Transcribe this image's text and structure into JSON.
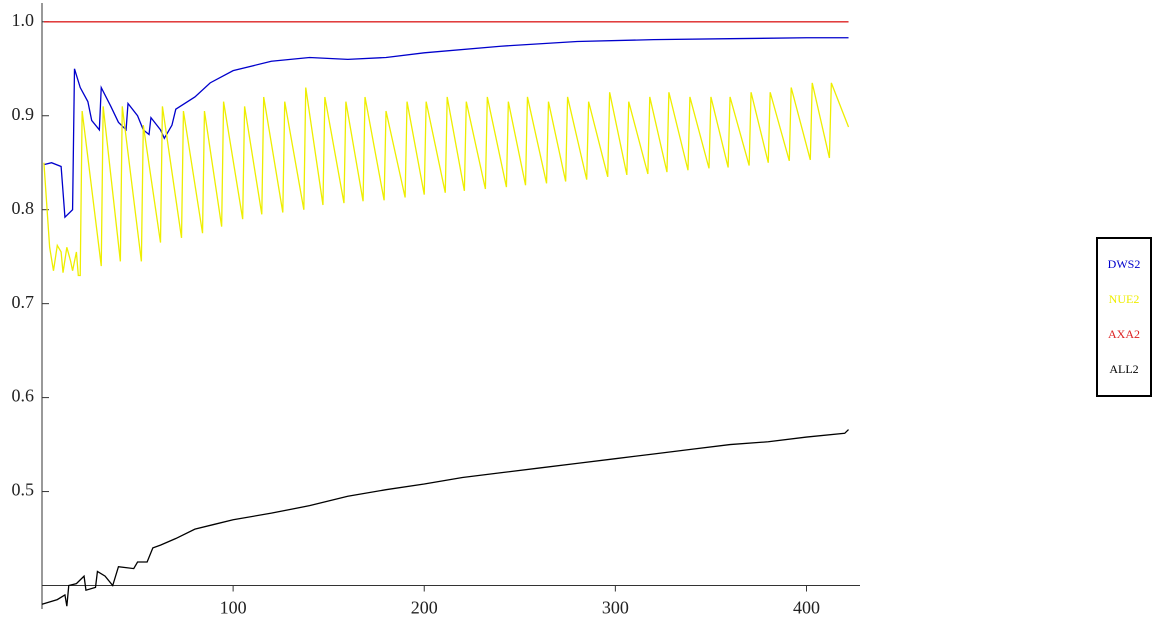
{
  "chart_data": {
    "type": "line",
    "xlim": [
      0,
      428
    ],
    "ylim": [
      0.375,
      1.02
    ],
    "axes_origin": [
      0,
      0.4
    ],
    "xticks": [
      100,
      200,
      300,
      400
    ],
    "yticks": [
      0.5,
      0.6,
      0.7,
      0.8,
      0.9,
      {
        "value": 1,
        "label": "1.0"
      }
    ],
    "legend": "right",
    "series": [
      {
        "name": "DWS2",
        "color": "#0000cc",
        "x": [
          1,
          5,
          10,
          12,
          16,
          17,
          20,
          24,
          26,
          30,
          31,
          36,
          40,
          44,
          45,
          50,
          53,
          56,
          57,
          62,
          64,
          68,
          70,
          80,
          88,
          100,
          120,
          140,
          160,
          180,
          200,
          240,
          280,
          320,
          360,
          400,
          422
        ],
        "values": [
          0.848,
          0.85,
          0.846,
          0.792,
          0.8,
          0.95,
          0.93,
          0.915,
          0.895,
          0.885,
          0.93,
          0.91,
          0.893,
          0.885,
          0.913,
          0.9,
          0.885,
          0.88,
          0.898,
          0.885,
          0.876,
          0.89,
          0.907,
          0.92,
          0.935,
          0.948,
          0.958,
          0.962,
          0.96,
          0.962,
          0.967,
          0.974,
          0.979,
          0.981,
          0.982,
          0.983,
          0.983
        ]
      },
      {
        "name": "NUE2",
        "color": "#eeee00",
        "x": [
          1,
          4,
          6,
          8,
          10,
          11,
          13,
          15,
          16,
          18,
          19,
          20,
          21,
          31,
          32,
          41,
          42,
          52,
          53,
          62,
          63,
          73,
          74,
          84,
          85,
          94,
          95,
          105,
          106,
          115,
          116,
          126,
          127,
          137,
          138,
          147,
          148,
          158,
          159,
          168,
          169,
          179,
          180,
          190,
          191,
          200,
          201,
          211,
          212,
          221,
          222,
          232,
          233,
          243,
          244,
          253,
          254,
          264,
          265,
          274,
          275,
          285,
          286,
          296,
          297,
          306,
          307,
          317,
          318,
          327,
          328,
          338,
          339,
          349,
          350,
          359,
          360,
          370,
          371,
          380,
          381,
          391,
          392,
          402,
          403,
          412,
          413,
          422
        ],
        "values": [
          0.85,
          0.76,
          0.735,
          0.762,
          0.755,
          0.733,
          0.76,
          0.745,
          0.735,
          0.755,
          0.73,
          0.73,
          0.905,
          0.74,
          0.91,
          0.745,
          0.91,
          0.745,
          0.89,
          0.765,
          0.91,
          0.77,
          0.905,
          0.775,
          0.905,
          0.782,
          0.915,
          0.79,
          0.91,
          0.795,
          0.92,
          0.797,
          0.915,
          0.8,
          0.93,
          0.805,
          0.92,
          0.807,
          0.915,
          0.809,
          0.92,
          0.81,
          0.905,
          0.813,
          0.915,
          0.816,
          0.915,
          0.818,
          0.92,
          0.82,
          0.915,
          0.822,
          0.92,
          0.824,
          0.915,
          0.826,
          0.92,
          0.828,
          0.915,
          0.83,
          0.92,
          0.832,
          0.915,
          0.835,
          0.925,
          0.837,
          0.915,
          0.838,
          0.92,
          0.84,
          0.925,
          0.842,
          0.92,
          0.844,
          0.92,
          0.845,
          0.92,
          0.847,
          0.925,
          0.85,
          0.925,
          0.852,
          0.93,
          0.853,
          0.935,
          0.855,
          0.935,
          0.888
        ]
      },
      {
        "name": "AXA2",
        "color": "#dd2222",
        "x": [
          1,
          422
        ],
        "values": [
          1,
          1
        ]
      },
      {
        "name": "ALL2",
        "color": "#000000",
        "x": [
          0,
          8,
          12,
          13,
          14,
          18,
          22,
          23,
          28,
          29,
          33,
          37,
          40,
          48,
          50,
          55,
          58,
          62,
          70,
          80,
          90,
          100,
          120,
          140,
          160,
          180,
          200,
          220,
          240,
          260,
          280,
          300,
          320,
          340,
          360,
          380,
          400,
          420,
          422
        ],
        "values": [
          0.38,
          0.385,
          0.39,
          0.378,
          0.4,
          0.402,
          0.41,
          0.395,
          0.398,
          0.415,
          0.41,
          0.4,
          0.42,
          0.418,
          0.425,
          0.425,
          0.44,
          0.443,
          0.45,
          0.46,
          0.465,
          0.47,
          0.477,
          0.485,
          0.495,
          0.502,
          0.508,
          0.515,
          0.52,
          0.525,
          0.53,
          0.535,
          0.54,
          0.545,
          0.55,
          0.553,
          0.558,
          0.562,
          0.566
        ]
      }
    ]
  }
}
